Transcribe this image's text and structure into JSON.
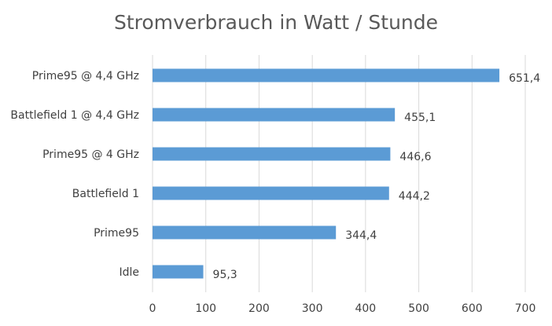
{
  "chart_data": {
    "type": "bar",
    "orientation": "horizontal",
    "title": "Stromverbrauch in Watt / Stunde",
    "categories": [
      "Prime95 @ 4,4 GHz",
      "Battlefield 1 @ 4,4 GHz",
      "Prime95 @ 4 GHz",
      "Battlefield 1",
      "Prime95",
      "Idle"
    ],
    "values": [
      651.4,
      455.1,
      446.6,
      444.2,
      344.4,
      95.3
    ],
    "value_labels": [
      "651,4",
      "455,1",
      "446,6",
      "444,2",
      "344,4",
      "95,3"
    ],
    "xlim": [
      0,
      700
    ],
    "xticks": [
      "0",
      "100",
      "200",
      "300",
      "400",
      "500",
      "600",
      "700"
    ],
    "grid": true,
    "bar_color": "#5b9bd5"
  }
}
